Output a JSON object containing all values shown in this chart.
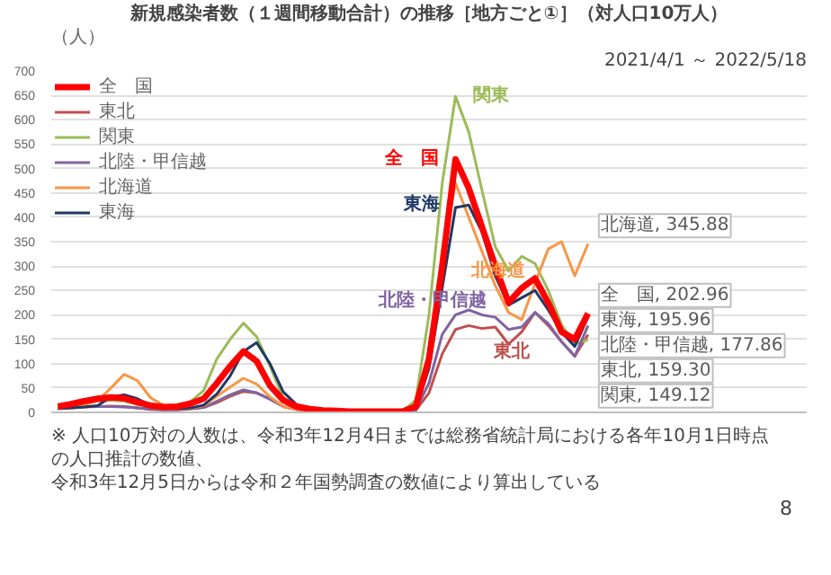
{
  "chart_data": {
    "type": "line",
    "title": "新規感染者数（１週間移動合計）の推移［地方ごと①］（対人口10万人）",
    "subtitle": "2021/4/1 ～ 2022/5/18",
    "ylabel": "（人）",
    "categories": [
      null,
      null,
      null,
      null,
      null,
      null,
      null,
      null,
      null,
      null,
      null,
      null,
      null,
      null,
      null,
      null,
      null,
      null,
      null,
      null,
      null,
      null,
      null,
      null,
      null,
      null,
      null,
      null,
      null,
      null,
      null,
      null,
      null,
      null,
      null,
      null,
      null,
      null,
      null,
      null,
      null
    ],
    "series": [
      {
        "name": "全　国",
        "color": "#ff0000",
        "values": [
          12,
          17,
          23,
          28,
          31,
          29,
          21,
          14,
          11,
          12,
          18,
          28,
          60,
          95,
          125,
          105,
          55,
          25,
          12,
          7,
          4,
          3,
          2,
          2,
          2,
          2,
          2,
          12,
          110,
          300,
          519,
          460,
          380,
          300,
          225,
          255,
          275,
          225,
          165,
          150,
          202.96
        ],
        "value_labels": [
          null,
          null,
          null,
          null,
          null,
          null,
          null,
          null,
          null,
          null,
          null,
          null,
          null,
          null,
          null,
          null,
          null,
          null,
          null,
          null,
          null,
          null,
          null,
          null,
          null,
          null,
          null,
          null,
          null,
          null,
          null,
          null,
          null,
          null,
          null,
          null,
          null,
          null,
          null,
          null,
          "全　国, 202.96"
        ]
      },
      {
        "name": "東北",
        "color": "#c0504d",
        "values": [
          8,
          9,
          11,
          12,
          13,
          12,
          9,
          6,
          5,
          5,
          7,
          10,
          20,
          33,
          43,
          40,
          28,
          12,
          6,
          4,
          2,
          2,
          1,
          1,
          1,
          1,
          1,
          4,
          40,
          120,
          170,
          178,
          172,
          175,
          140,
          165,
          205,
          178,
          145,
          115,
          159.3
        ],
        "value_labels": [
          null,
          null,
          null,
          null,
          null,
          null,
          null,
          null,
          null,
          null,
          null,
          null,
          null,
          null,
          null,
          null,
          null,
          null,
          null,
          null,
          null,
          null,
          null,
          null,
          null,
          null,
          null,
          null,
          null,
          null,
          null,
          null,
          null,
          null,
          null,
          null,
          null,
          null,
          null,
          null,
          "東北, 159.30"
        ]
      },
      {
        "name": "関東",
        "color": "#9bbb59",
        "values": [
          null,
          null,
          21,
          23,
          25,
          23,
          16,
          13,
          12,
          14,
          22,
          45,
          110,
          150,
          183,
          155,
          95,
          30,
          14,
          9,
          5,
          4,
          3,
          2,
          2,
          2,
          2,
          25,
          200,
          470,
          648,
          575,
          455,
          340,
          290,
          320,
          305,
          250,
          180,
          140,
          149.12
        ],
        "value_labels": [
          null,
          null,
          null,
          null,
          null,
          null,
          null,
          null,
          null,
          null,
          null,
          null,
          null,
          null,
          null,
          null,
          null,
          null,
          null,
          null,
          null,
          null,
          null,
          null,
          null,
          null,
          null,
          null,
          null,
          null,
          null,
          null,
          null,
          null,
          null,
          null,
          null,
          null,
          null,
          null,
          "関東, 149.12"
        ]
      },
      {
        "name": "北陸・甲信越",
        "color": "#8064a2",
        "values": [
          12,
          12,
          13,
          12,
          12,
          11,
          9,
          7,
          6,
          6,
          8,
          10,
          23,
          36,
          46,
          40,
          27,
          12,
          6,
          4,
          2,
          2,
          1,
          1,
          1,
          1,
          1,
          5,
          60,
          160,
          200,
          210,
          200,
          195,
          170,
          175,
          205,
          182,
          145,
          115,
          177.86
        ],
        "value_labels": [
          null,
          null,
          null,
          null,
          null,
          null,
          null,
          null,
          null,
          null,
          null,
          null,
          null,
          null,
          null,
          null,
          null,
          null,
          null,
          null,
          null,
          null,
          null,
          null,
          null,
          null,
          null,
          null,
          null,
          null,
          null,
          null,
          null,
          null,
          null,
          null,
          null,
          null,
          null,
          null,
          "北陸・甲信越, 177.86"
        ]
      },
      {
        "name": "北海道",
        "color": "#f79646",
        "values": [
          10,
          13,
          16,
          24,
          50,
          78,
          65,
          30,
          14,
          9,
          8,
          14,
          33,
          52,
          70,
          58,
          32,
          12,
          6,
          4,
          2,
          2,
          2,
          2,
          2,
          2,
          3,
          9,
          100,
          330,
          470,
          400,
          330,
          260,
          205,
          190,
          265,
          335,
          350,
          280,
          345.88
        ],
        "value_labels": [
          null,
          null,
          null,
          null,
          null,
          null,
          null,
          null,
          null,
          null,
          null,
          null,
          null,
          null,
          null,
          null,
          null,
          null,
          null,
          null,
          null,
          null,
          null,
          null,
          null,
          null,
          null,
          null,
          null,
          null,
          null,
          null,
          null,
          null,
          null,
          null,
          null,
          null,
          null,
          null,
          "北海道, 345.88"
        ]
      },
      {
        "name": "東海",
        "color": "#1f3864",
        "values": [
          8,
          9,
          11,
          14,
          32,
          36,
          28,
          14,
          9,
          8,
          9,
          15,
          38,
          75,
          125,
          143,
          100,
          42,
          16,
          9,
          4,
          3,
          2,
          2,
          1,
          1,
          1,
          8,
          90,
          255,
          420,
          425,
          370,
          280,
          220,
          235,
          250,
          210,
          165,
          135,
          195.96
        ],
        "value_labels": [
          null,
          null,
          null,
          null,
          null,
          null,
          null,
          null,
          null,
          null,
          null,
          null,
          null,
          null,
          null,
          null,
          null,
          null,
          null,
          null,
          null,
          null,
          null,
          null,
          null,
          null,
          null,
          null,
          null,
          null,
          null,
          null,
          null,
          null,
          null,
          null,
          null,
          null,
          null,
          null,
          "東海, 195.96"
        ]
      }
    ],
    "ylim": [
      0,
      700
    ],
    "yticks": [
      0,
      50,
      100,
      150,
      200,
      250,
      300,
      350,
      400,
      450,
      500,
      550,
      600,
      650,
      700
    ],
    "tick_labels": "y",
    "grid": "y",
    "legend": "top left",
    "annotations": [
      "※ 人口10万対の人数は、令和3年12月4日までは総務省統計局における各年10月1日時点の人口推計の数値、",
      "令和3年12月5日からは令和２年国勢調査の数値により算出している",
      "8"
    ]
  }
}
